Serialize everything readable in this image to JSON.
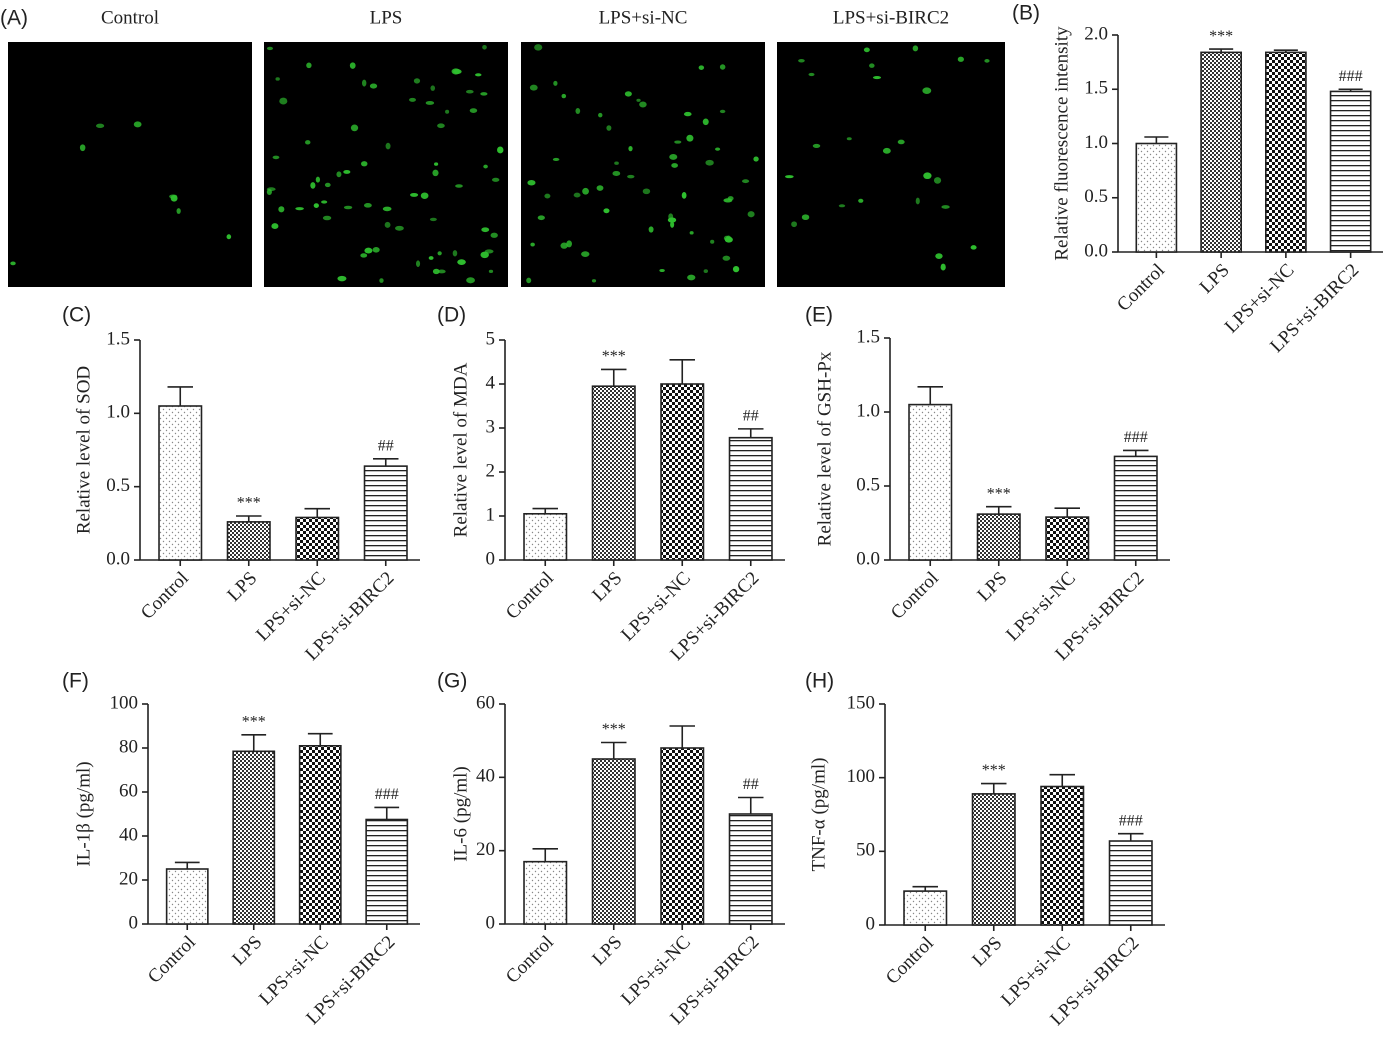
{
  "panel_a": {
    "label": "(A)",
    "titles": [
      "Control",
      "LPS",
      "LPS+si-NC",
      "LPS+si-BIRC2"
    ]
  },
  "chart_data": [
    {
      "type": "bar",
      "panel": "(B)",
      "ylabel": "Relative fluorescence intensity",
      "categories": [
        "Control",
        "LPS",
        "LPS+si-NC",
        "LPS+si-BIRC2"
      ],
      "values": [
        1.0,
        1.84,
        1.84,
        1.48
      ],
      "errors": [
        0.06,
        0.03,
        0.02,
        0.02
      ],
      "annotations": [
        null,
        "***",
        null,
        "###"
      ],
      "ylim": [
        0,
        2.0
      ],
      "yticks": [
        {
          "value": 0,
          "label": "0.0"
        },
        0.5,
        {
          "value": 1,
          "label": "1.0"
        },
        1.5,
        {
          "value": 2,
          "label": "2.0"
        }
      ]
    },
    {
      "type": "bar",
      "panel": "(C)",
      "ylabel": "Relative level of SOD",
      "categories": [
        "Control",
        "LPS",
        "LPS+si-NC",
        "LPS+si-BIRC2"
      ],
      "values": [
        1.05,
        0.26,
        0.29,
        0.64
      ],
      "errors": [
        0.13,
        0.04,
        0.06,
        0.05
      ],
      "annotations": [
        null,
        "***",
        null,
        "##"
      ],
      "ylim": [
        0,
        1.5
      ],
      "yticks": [
        {
          "value": 0,
          "label": "0.0"
        },
        0.5,
        {
          "value": 1,
          "label": "1.0"
        },
        1.5
      ]
    },
    {
      "type": "bar",
      "panel": "(D)",
      "ylabel": "Relative level of MDA",
      "categories": [
        "Control",
        "LPS",
        "LPS+si-NC",
        "LPS+si-BIRC2"
      ],
      "values": [
        1.05,
        3.95,
        4.0,
        2.78
      ],
      "errors": [
        0.12,
        0.38,
        0.55,
        0.2
      ],
      "annotations": [
        null,
        "***",
        null,
        "##"
      ],
      "ylim": [
        0,
        5
      ],
      "yticks": [
        0,
        1,
        2,
        3,
        4,
        5
      ]
    },
    {
      "type": "bar",
      "panel": "(E)",
      "ylabel": "Relative level of GSH-Px",
      "categories": [
        "Control",
        "LPS",
        "LPS+si-NC",
        "LPS+si-BIRC2"
      ],
      "values": [
        1.05,
        0.31,
        0.29,
        0.7
      ],
      "errors": [
        0.12,
        0.05,
        0.06,
        0.04
      ],
      "annotations": [
        null,
        "***",
        null,
        "###"
      ],
      "ylim": [
        0,
        1.5
      ],
      "yticks": [
        {
          "value": 0,
          "label": "0.0"
        },
        0.5,
        {
          "value": 1,
          "label": "1.0"
        },
        1.5
      ]
    },
    {
      "type": "bar",
      "panel": "(F)",
      "ylabel": "IL-1β (pg/ml)",
      "categories": [
        "Control",
        "LPS",
        "LPS+si-NC",
        "LPS+si-BIRC2"
      ],
      "values": [
        25,
        78.5,
        81,
        47.5
      ],
      "errors": [
        3,
        7.5,
        5.5,
        5.5
      ],
      "annotations": [
        null,
        "***",
        null,
        "###"
      ],
      "ylim": [
        0,
        100
      ],
      "yticks": [
        0,
        20,
        40,
        60,
        80,
        100
      ]
    },
    {
      "type": "bar",
      "panel": "(G)",
      "ylabel": "IL-6 (pg/ml)",
      "categories": [
        "Control",
        "LPS",
        "LPS+si-NC",
        "LPS+si-BIRC2"
      ],
      "values": [
        17,
        45,
        48,
        30
      ],
      "errors": [
        3.5,
        4.5,
        6,
        4.5
      ],
      "annotations": [
        null,
        "***",
        null,
        "##"
      ],
      "ylim": [
        0,
        60
      ],
      "yticks": [
        0,
        20,
        40,
        60
      ]
    },
    {
      "type": "bar",
      "panel": "(H)",
      "ylabel": "TNF-α (pg/ml)",
      "categories": [
        "Control",
        "LPS",
        "LPS+si-NC",
        "LPS+si-BIRC2"
      ],
      "values": [
        23,
        89,
        94,
        57
      ],
      "errors": [
        3,
        7,
        8,
        5
      ],
      "annotations": [
        null,
        "***",
        null,
        "###"
      ],
      "ylim": [
        0,
        150
      ],
      "yticks": [
        0,
        50,
        100,
        150
      ]
    }
  ]
}
